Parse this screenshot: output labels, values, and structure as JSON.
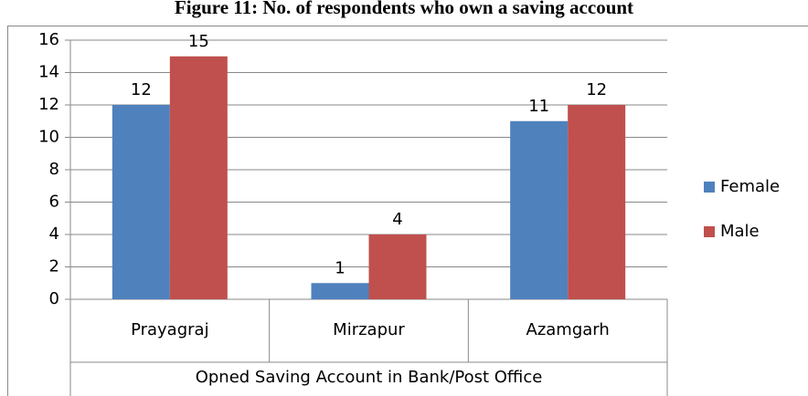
{
  "chart_data": {
    "type": "bar",
    "title": "Figure 11: No. of respondents who own a saving account",
    "categories": [
      "Prayagraj",
      "Mirzapur",
      "Azamgarh"
    ],
    "group_label": "Opned Saving Account in Bank/Post Office",
    "series": [
      {
        "name": "Female",
        "color": "#4f81bd",
        "values": [
          12,
          1,
          11
        ]
      },
      {
        "name": "Male",
        "color": "#c0504d",
        "values": [
          15,
          4,
          12
        ]
      }
    ],
    "ylim": [
      0,
      16
    ],
    "yticks": [
      0,
      2,
      4,
      6,
      8,
      10,
      12,
      14,
      16
    ],
    "grid": true,
    "legend": "right"
  }
}
